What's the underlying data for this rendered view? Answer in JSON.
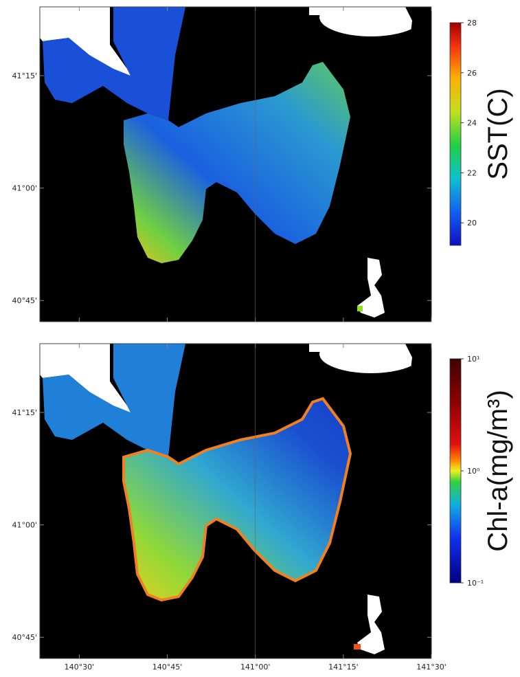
{
  "panels": [
    {
      "colorbar_label": "SST(C)",
      "colorbar_ticks": [
        20,
        22,
        24,
        26,
        28
      ],
      "colorbar_range": [
        19.1,
        28
      ],
      "log_scale": false
    },
    {
      "colorbar_label": "Chl-a(mg/m³)",
      "colorbar_ticks": [
        {
          "value": 0.1,
          "label": "10⁻¹"
        },
        {
          "value": 1,
          "label": "10⁰"
        },
        {
          "value": 10,
          "label": "10¹"
        }
      ],
      "colorbar_range": [
        0.1,
        10
      ],
      "log_scale": true
    }
  ],
  "lat_ticks": [
    {
      "value": 41.25,
      "label": "41°15'"
    },
    {
      "value": 41.0,
      "label": "41°00'"
    },
    {
      "value": 40.75,
      "label": "40°45'"
    }
  ],
  "lon_ticks": [
    {
      "value": 140.5,
      "label": "140°30'"
    },
    {
      "value": 140.75,
      "label": "140°45'"
    },
    {
      "value": 141.0,
      "label": "141°00'"
    },
    {
      "value": 141.25,
      "label": "141°15'"
    },
    {
      "value": 141.5,
      "label": "141°30'"
    }
  ],
  "lon_range": [
    140.388,
    141.5
  ],
  "lat_range": [
    40.703,
    41.403
  ]
}
